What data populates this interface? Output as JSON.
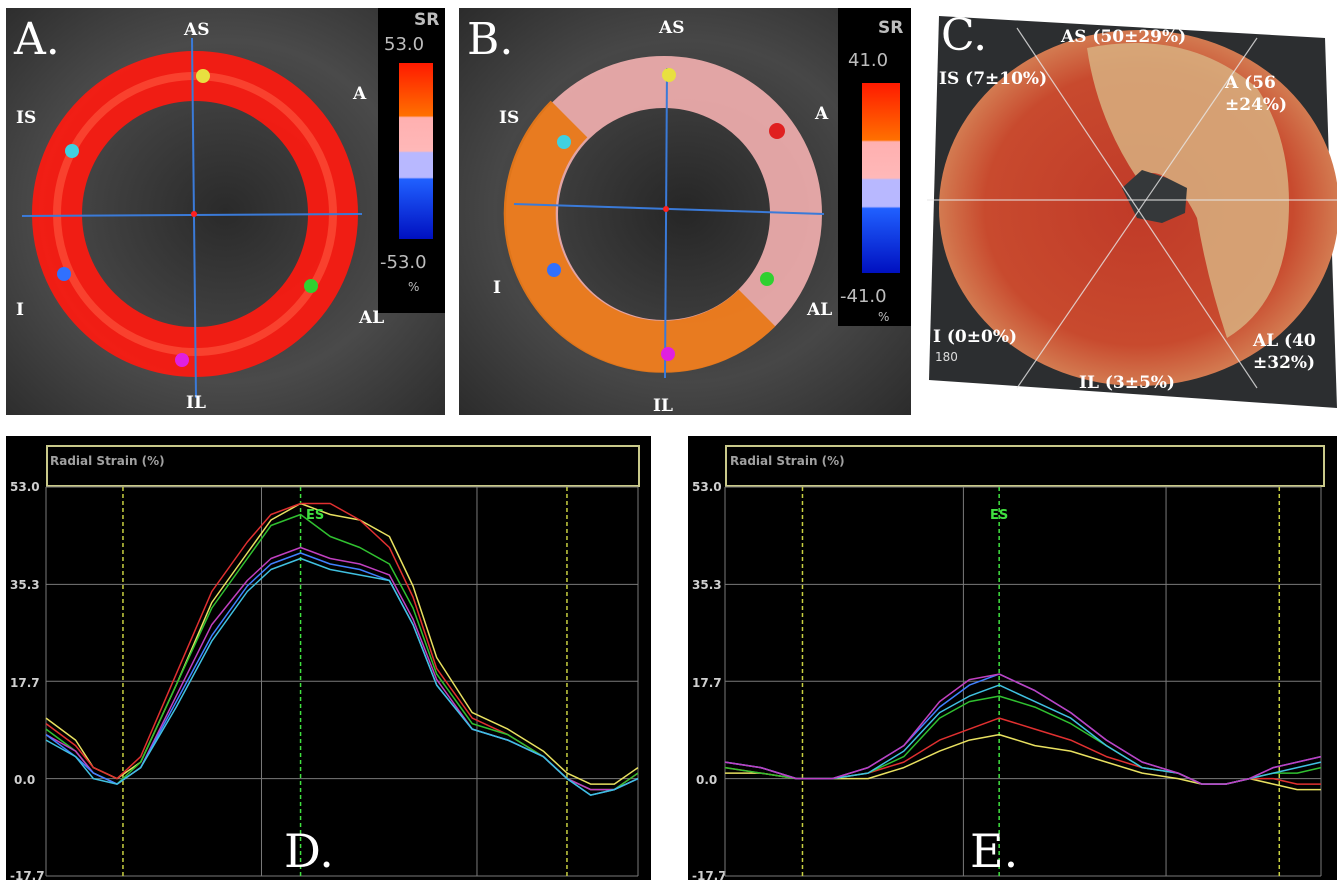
{
  "panelA": {
    "letter": "A.",
    "labels": {
      "as": "AS",
      "a": "A",
      "is": "IS",
      "i": "I",
      "al": "AL",
      "il": "IL"
    },
    "colorbar": {
      "title": "SR",
      "max": "53.0",
      "min": "-53.0",
      "unit": "%"
    }
  },
  "panelB": {
    "letter": "B.",
    "labels": {
      "as": "AS",
      "a": "A",
      "is": "IS",
      "i": "I",
      "al": "AL",
      "il": "IL"
    },
    "colorbar": {
      "title": "SR",
      "max": "41.0",
      "min": "-41.0",
      "unit": "%"
    }
  },
  "panelC": {
    "letter": "C.",
    "labels": {
      "as": "AS (50±29%)",
      "is": "IS (7±10%)",
      "a": "A (56\n±24%)",
      "i": "I (0±0%)",
      "i_sub": "180",
      "al": "AL (40\n±32%)",
      "il": "IL (3±5%)"
    }
  },
  "graphD": {
    "letter": "D.",
    "title": "Radial Strain (%)",
    "ticks": [
      "53.0",
      "35.3",
      "17.7",
      "0.0",
      "-17.7"
    ],
    "es": "ES"
  },
  "graphE": {
    "letter": "E.",
    "title": "Radial Strain (%)",
    "ticks": [
      "53.0",
      "35.3",
      "17.7",
      "0.0",
      "-17.7"
    ],
    "es": "ES"
  },
  "colors": {
    "strain_curves": [
      "#e8e060",
      "#e03030",
      "#30c030",
      "#c040c0",
      "#4080ff",
      "#40c0e0"
    ],
    "grid": "#7a7a7a",
    "marker_dashed": "#c8d040",
    "es_line": "#40e040"
  },
  "chart_data": [
    {
      "type": "line",
      "title": "Radial Strain (%)",
      "ylim": [
        -17.7,
        53.0
      ],
      "yticks": [
        53.0,
        35.3,
        17.7,
        0.0,
        -17.7
      ],
      "xlim": [
        0,
        1
      ],
      "es_x": 0.43,
      "x": [
        0.0,
        0.05,
        0.08,
        0.12,
        0.16,
        0.22,
        0.28,
        0.34,
        0.38,
        0.43,
        0.48,
        0.53,
        0.58,
        0.62,
        0.66,
        0.72,
        0.78,
        0.84,
        0.88,
        0.92,
        0.96,
        1.0
      ],
      "series": [
        {
          "color": "#e8e060",
          "values": [
            11,
            7,
            2,
            0,
            3,
            17,
            32,
            41,
            47,
            50,
            48,
            47,
            44,
            35,
            22,
            12,
            9,
            5,
            1,
            -1,
            -1,
            2
          ]
        },
        {
          "color": "#e03030",
          "values": [
            10,
            6,
            2,
            0,
            4,
            19,
            34,
            43,
            48,
            50,
            50,
            47,
            42,
            33,
            20,
            11,
            8,
            4,
            0,
            -2,
            -2,
            1
          ]
        },
        {
          "color": "#30c030",
          "values": [
            9,
            5,
            1,
            -1,
            3,
            17,
            31,
            40,
            46,
            48,
            44,
            42,
            39,
            31,
            19,
            10,
            8,
            4,
            0,
            -2,
            -2,
            1
          ]
        },
        {
          "color": "#c040c0",
          "values": [
            8,
            5,
            1,
            -1,
            2,
            15,
            28,
            36,
            40,
            42,
            40,
            39,
            37,
            29,
            18,
            9,
            7,
            4,
            0,
            -2,
            -2,
            0
          ]
        },
        {
          "color": "#4080ff",
          "values": [
            8,
            4,
            1,
            -1,
            2,
            14,
            26,
            35,
            39,
            41,
            39,
            38,
            36,
            28,
            17,
            9,
            7,
            4,
            0,
            -3,
            -2,
            0
          ]
        },
        {
          "color": "#40c0e0",
          "values": [
            7,
            4,
            0,
            -1,
            2,
            13,
            25,
            34,
            38,
            40,
            38,
            37,
            36,
            28,
            17,
            9,
            7,
            4,
            0,
            -3,
            -2,
            0
          ]
        }
      ]
    },
    {
      "type": "line",
      "title": "Radial Strain (%)",
      "ylim": [
        -17.7,
        53.0
      ],
      "yticks": [
        53.0,
        35.3,
        17.7,
        0.0,
        -17.7
      ],
      "xlim": [
        0,
        1
      ],
      "es_x": 0.46,
      "x": [
        0.0,
        0.06,
        0.12,
        0.18,
        0.24,
        0.3,
        0.36,
        0.41,
        0.46,
        0.52,
        0.58,
        0.64,
        0.7,
        0.76,
        0.8,
        0.84,
        0.88,
        0.92,
        0.96,
        1.0
      ],
      "series": [
        {
          "color": "#e8e060",
          "values": [
            1,
            1,
            0,
            0,
            0,
            2,
            5,
            7,
            8,
            6,
            5,
            3,
            1,
            0,
            -1,
            -1,
            0,
            -1,
            -2,
            -2
          ]
        },
        {
          "color": "#e03030",
          "values": [
            2,
            1,
            0,
            0,
            1,
            3,
            7,
            9,
            11,
            9,
            7,
            4,
            2,
            1,
            -1,
            -1,
            0,
            0,
            -1,
            -1
          ]
        },
        {
          "color": "#30c030",
          "values": [
            2,
            1,
            0,
            0,
            1,
            4,
            11,
            14,
            15,
            13,
            10,
            6,
            2,
            1,
            -1,
            -1,
            0,
            1,
            1,
            2
          ]
        },
        {
          "color": "#40c0e0",
          "values": [
            3,
            2,
            0,
            0,
            1,
            5,
            12,
            15,
            17,
            14,
            11,
            6,
            2,
            1,
            -1,
            -1,
            0,
            1,
            2,
            3
          ]
        },
        {
          "color": "#4080ff",
          "values": [
            3,
            2,
            0,
            0,
            2,
            6,
            13,
            17,
            19,
            16,
            12,
            7,
            3,
            1,
            -1,
            -1,
            0,
            2,
            3,
            4
          ]
        },
        {
          "color": "#c040c0",
          "values": [
            3,
            2,
            0,
            0,
            2,
            6,
            14,
            18,
            19,
            16,
            12,
            7,
            3,
            1,
            -1,
            -1,
            0,
            2,
            3,
            4
          ]
        }
      ]
    }
  ]
}
